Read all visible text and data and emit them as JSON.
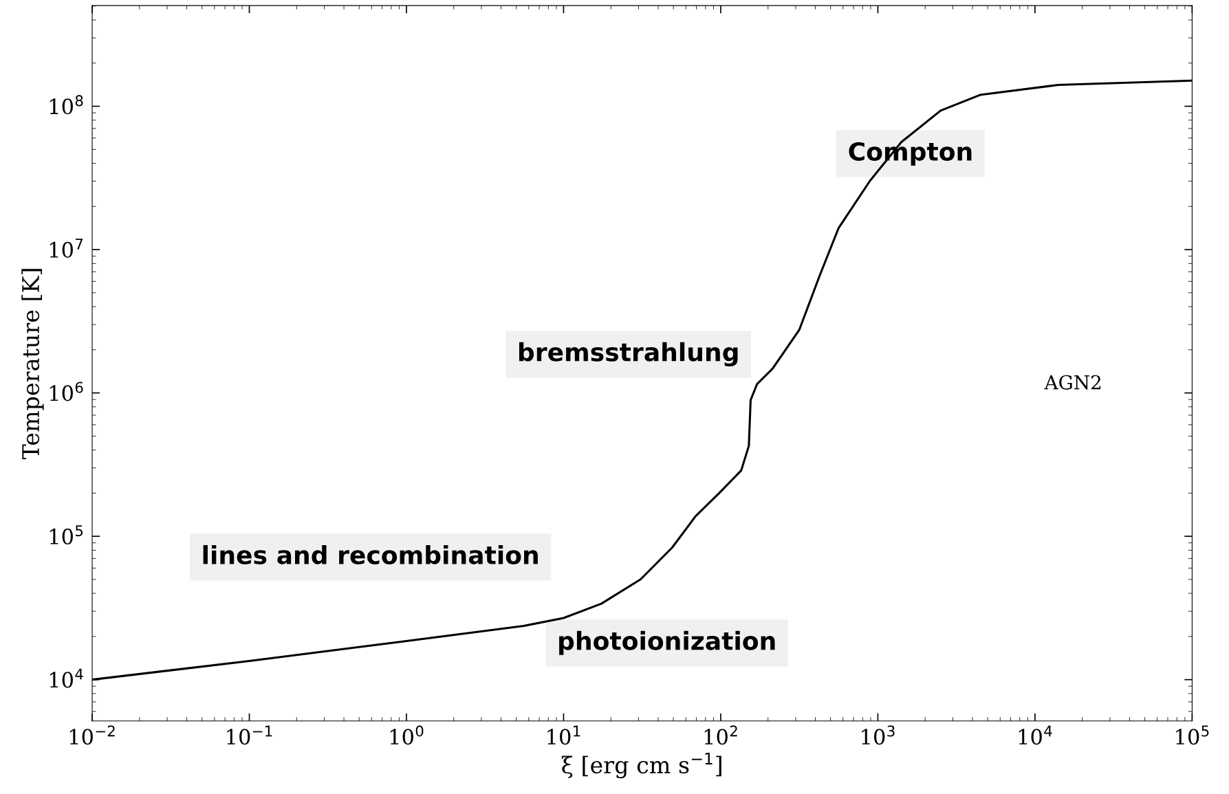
{
  "chart_data": {
    "type": "line",
    "xlabel": "ξ [erg cm s$^{−1}$]",
    "ylabel": "Temperature [K]",
    "log": "xy",
    "xlim": [
      0.01,
      100000
    ],
    "ylim": [
      5150,
      504000000
    ],
    "xticks": [
      {
        "value": 0.01,
        "label": "10$^{−2}$"
      },
      {
        "value": 0.1,
        "label": "10$^{−1}$"
      },
      {
        "value": 1,
        "label": "10$^{0}$"
      },
      {
        "value": 10,
        "label": "10$^{1}$"
      },
      {
        "value": 100,
        "label": "10$^{2}$"
      },
      {
        "value": 1000,
        "label": "10$^{3}$"
      },
      {
        "value": 10000,
        "label": "10$^{4}$"
      },
      {
        "value": 100000,
        "label": "10$^{5}$"
      }
    ],
    "yticks": [
      {
        "value": 10000,
        "label": "10$^{4}$"
      },
      {
        "value": 100000,
        "label": "10$^{5}$"
      },
      {
        "value": 1000000,
        "label": "10$^{6}$"
      },
      {
        "value": 10000000,
        "label": "10$^{7}$"
      },
      {
        "value": 100000000,
        "label": "10$^{8}$"
      }
    ],
    "series": [
      {
        "color": "#000000",
        "x": [
          0.01,
          0.1,
          1,
          5.56,
          10,
          17.4,
          30.9,
          49.0,
          69.2,
          97.7,
          135,
          151,
          155,
          170,
          214,
          316,
          427,
          562,
          891,
          1410,
          2510,
          4470,
          14100,
          100000
        ],
        "values": [
          10000,
          13500,
          18600,
          23700,
          26900,
          33900,
          50100,
          83200,
          138000,
          200000,
          288000,
          427000,
          891000,
          1150000,
          1480000,
          2750000,
          6610000,
          14100000,
          30200000,
          56200000,
          93300000,
          120000000,
          141000000,
          151000000
        ]
      }
    ],
    "annotations": [
      "Compton",
      "bremsstrahlung",
      "lines and recombination",
      "photoionization",
      "AGN2"
    ]
  }
}
